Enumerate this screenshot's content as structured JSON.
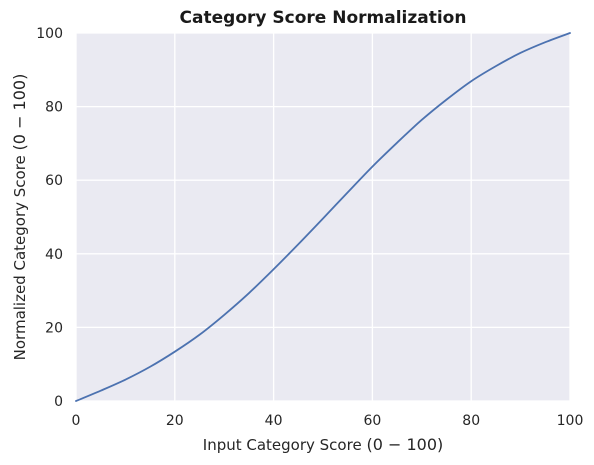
{
  "chart_data": {
    "type": "line",
    "title": "Category Score Normalization",
    "xlabel": "Input Category Score $(0 - 100)$",
    "ylabel": "Normalized Category Score $(0 - 100)$",
    "xlim": [
      0,
      100
    ],
    "ylim": [
      0,
      100
    ],
    "xticks": [
      0,
      20,
      40,
      60,
      80,
      100
    ],
    "yticks": [
      0,
      20,
      40,
      60,
      80,
      100
    ],
    "grid": true,
    "legend": "none",
    "colors": {
      "line": "#4c72b0",
      "background": "#eaeaf2",
      "grid": "#ffffff"
    },
    "series": [
      {
        "x": [
          0,
          5,
          10,
          15,
          20,
          25,
          30,
          35,
          40,
          45,
          50,
          55,
          60,
          65,
          70,
          75,
          80,
          85,
          90,
          95,
          100
        ],
        "y": [
          0,
          2.8,
          5.8,
          9.3,
          13.4,
          18.0,
          23.4,
          29.3,
          35.8,
          42.6,
          49.6,
          56.7,
          63.7,
          70.2,
          76.4,
          81.9,
          86.9,
          91.0,
          94.6,
          97.5,
          100
        ]
      }
    ]
  }
}
